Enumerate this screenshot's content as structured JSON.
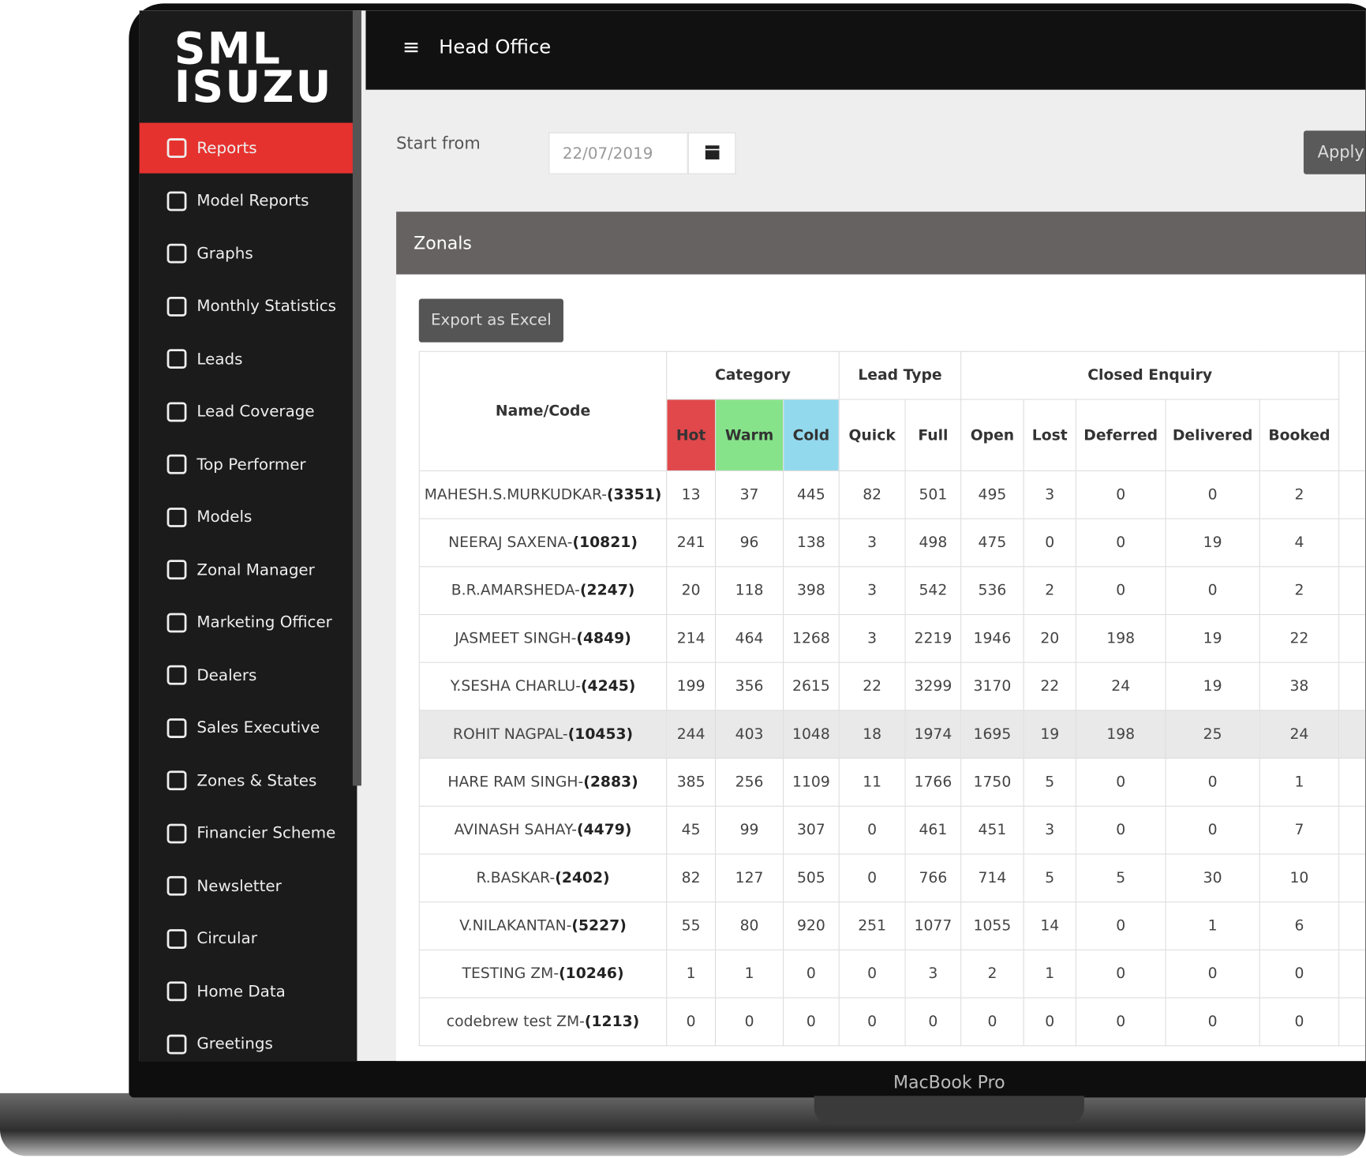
{
  "logo": {
    "line1": "SML",
    "line2": "ISUZU"
  },
  "sidebar": {
    "active": 0,
    "items": [
      "Reports",
      "Model Reports",
      "Graphs",
      "Monthly Statistics",
      "Leads",
      "Lead Coverage",
      "Top Performer",
      "Models",
      "Zonal Manager",
      "Marketing Officer",
      "Dealers",
      "Sales Executive",
      "Zones & States",
      "Financier Scheme",
      "Newsletter",
      "Circular",
      "Home Data",
      "Greetings"
    ]
  },
  "header": {
    "title": "Head Office"
  },
  "filter": {
    "label": "Start from",
    "date": "22/07/2019",
    "button": "Apply"
  },
  "panel": {
    "title": "Zonals",
    "export_button": "Export as Excel"
  },
  "table": {
    "name_header": "Name/Code",
    "groups": [
      {
        "label": "Category",
        "span": 3
      },
      {
        "label": "Lead Type",
        "span": 2
      },
      {
        "label": "Closed Enquiry",
        "span": 5
      }
    ],
    "columns": [
      {
        "label": "Hot",
        "color": "#e0484c"
      },
      {
        "label": "Warm",
        "color": "#86e38a"
      },
      {
        "label": "Cold",
        "color": "#92d9ee"
      },
      {
        "label": "Quick"
      },
      {
        "label": "Full"
      },
      {
        "label": "Open"
      },
      {
        "label": "Lost"
      },
      {
        "label": "Deferred"
      },
      {
        "label": "Delivered"
      },
      {
        "label": "Booked"
      }
    ],
    "highlighted_row": 5,
    "rows": [
      {
        "name": "MAHESH.S.MURKUDKAR-",
        "code": "(3351)",
        "values": [
          13,
          37,
          445,
          82,
          501,
          495,
          3,
          0,
          0,
          2
        ]
      },
      {
        "name": "NEERAJ SAXENA-",
        "code": "(10821)",
        "values": [
          241,
          96,
          138,
          3,
          498,
          475,
          0,
          0,
          19,
          4
        ]
      },
      {
        "name": "B.R.AMARSHEDA-",
        "code": "(2247)",
        "values": [
          20,
          118,
          398,
          3,
          542,
          536,
          2,
          0,
          0,
          2
        ]
      },
      {
        "name": "JASMEET SINGH-",
        "code": "(4849)",
        "values": [
          214,
          464,
          1268,
          3,
          2219,
          1946,
          20,
          198,
          19,
          22
        ]
      },
      {
        "name": "Y.SESHA CHARLU-",
        "code": "(4245)",
        "values": [
          199,
          356,
          2615,
          22,
          3299,
          3170,
          22,
          24,
          19,
          38
        ]
      },
      {
        "name": "ROHIT NAGPAL-",
        "code": "(10453)",
        "values": [
          244,
          403,
          1048,
          18,
          1974,
          1695,
          19,
          198,
          25,
          24
        ]
      },
      {
        "name": "HARE RAM SINGH-",
        "code": "(2883)",
        "values": [
          385,
          256,
          1109,
          11,
          1766,
          1750,
          5,
          0,
          0,
          1
        ]
      },
      {
        "name": "AVINASH SAHAY-",
        "code": "(4479)",
        "values": [
          45,
          99,
          307,
          0,
          461,
          451,
          3,
          0,
          0,
          7
        ]
      },
      {
        "name": "R.BASKAR-",
        "code": "(2402)",
        "values": [
          82,
          127,
          505,
          0,
          766,
          714,
          5,
          5,
          30,
          10
        ]
      },
      {
        "name": "V.NILAKANTAN-",
        "code": "(5227)",
        "values": [
          55,
          80,
          920,
          251,
          1077,
          1055,
          14,
          0,
          1,
          6
        ]
      },
      {
        "name": "TESTING ZM-",
        "code": "(10246)",
        "values": [
          1,
          1,
          0,
          0,
          3,
          2,
          1,
          0,
          0,
          0
        ]
      },
      {
        "name": "codebrew test ZM-",
        "code": "(1213)",
        "values": [
          0,
          0,
          0,
          0,
          0,
          0,
          0,
          0,
          0,
          0
        ]
      }
    ]
  },
  "device_label": "MacBook Pro"
}
